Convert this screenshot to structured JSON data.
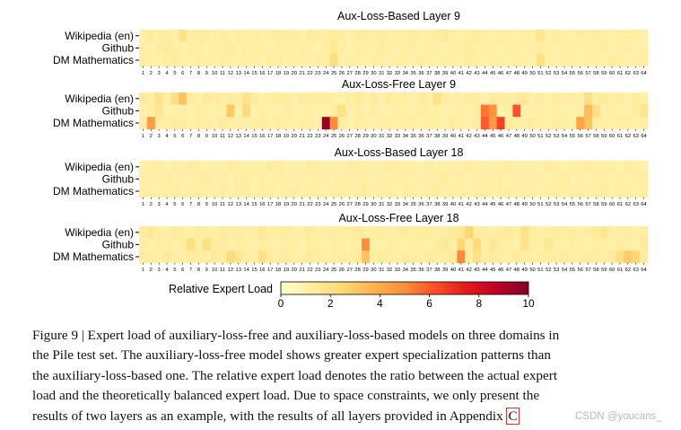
{
  "chart_data": {
    "type": "heatmap",
    "panels": [
      {
        "title": "Aux-Loss-Based Layer 9",
        "rows": [
          "Wikipedia (en)",
          "Github",
          "DM Mathematics"
        ],
        "values": [
          [
            1.0,
            1.3,
            1.1,
            1.2,
            1.0,
            1.9,
            1.1,
            1.3,
            1.2,
            1.0,
            1.2,
            1.0,
            1.3,
            1.1,
            1.2,
            1.0,
            1.1,
            1.3,
            1.1,
            1.2,
            1.0,
            1.4,
            1.1,
            1.2,
            1.3,
            1.1,
            1.0,
            1.3,
            1.2,
            1.1,
            1.2,
            1.0,
            1.2,
            1.1,
            1.3,
            1.0,
            1.1,
            1.2,
            1.5,
            1.1,
            1.0,
            1.2,
            1.3,
            1.1,
            1.0,
            1.2,
            1.1,
            1.0,
            1.2,
            1.1,
            1.7,
            1.0,
            1.2,
            1.1,
            1.0,
            1.2,
            1.1,
            1.3,
            1.1,
            1.0,
            1.2,
            1.1,
            1.2,
            1.0
          ],
          [
            1.1,
            1.0,
            1.2,
            1.4,
            1.1,
            1.0,
            1.2,
            1.1,
            1.0,
            1.2,
            1.1,
            1.3,
            1.0,
            1.1,
            1.2,
            1.1,
            1.0,
            1.2,
            1.1,
            1.0,
            1.2,
            1.1,
            1.0,
            1.2,
            1.5,
            1.1,
            1.0,
            1.2,
            1.1,
            1.0,
            1.3,
            1.1,
            1.0,
            1.2,
            1.1,
            1.0,
            1.2,
            1.1,
            1.0,
            1.2,
            1.1,
            1.4,
            1.0,
            1.1,
            1.2,
            1.0,
            1.1,
            1.2,
            1.0,
            1.1,
            1.2,
            1.1,
            1.0,
            1.2,
            1.1,
            1.0,
            1.2,
            1.1,
            1.3,
            1.0,
            1.1,
            1.2,
            1.0,
            1.1
          ],
          [
            1.2,
            1.1,
            1.0,
            1.2,
            1.3,
            1.1,
            1.0,
            1.2,
            1.1,
            1.0,
            1.2,
            1.1,
            1.0,
            1.2,
            1.1,
            1.0,
            1.2,
            1.1,
            1.0,
            1.2,
            1.1,
            1.0,
            1.2,
            1.1,
            2.2,
            1.0,
            1.2,
            1.1,
            1.0,
            1.2,
            1.1,
            1.0,
            1.2,
            1.1,
            1.0,
            1.2,
            1.1,
            1.0,
            1.2,
            1.1,
            1.0,
            1.3,
            1.1,
            1.0,
            1.2,
            1.1,
            1.0,
            1.2,
            1.1,
            1.0,
            2.0,
            1.1,
            1.0,
            1.2,
            1.1,
            1.0,
            1.2,
            1.1,
            1.0,
            1.2,
            1.1,
            1.0,
            1.2,
            1.1
          ]
        ]
      },
      {
        "title": "Aux-Loss-Free Layer 9",
        "rows": [
          "Wikipedia (en)",
          "Github",
          "DM Mathematics"
        ],
        "values": [
          [
            1.4,
            1.2,
            1.9,
            1.1,
            2.1,
            3.2,
            1.2,
            1.0,
            1.4,
            1.2,
            1.1,
            1.3,
            1.2,
            1.9,
            1.2,
            1.0,
            1.1,
            1.3,
            1.2,
            1.0,
            1.4,
            1.1,
            1.2,
            1.3,
            1.1,
            1.0,
            1.2,
            1.4,
            1.1,
            1.2,
            1.0,
            1.3,
            1.1,
            1.2,
            1.0,
            1.3,
            1.1,
            1.9,
            1.2,
            1.0,
            1.1,
            1.3,
            1.2,
            1.0,
            1.4,
            1.2,
            1.1,
            1.3,
            1.5,
            1.1,
            1.2,
            1.0,
            1.3,
            1.1,
            1.2,
            1.0,
            2.1,
            1.2,
            1.4,
            1.1,
            1.2,
            1.0,
            1.3,
            1.1
          ],
          [
            1.0,
            1.1,
            1.6,
            1.0,
            1.0,
            1.1,
            1.0,
            1.2,
            1.0,
            1.0,
            1.1,
            3.0,
            1.0,
            2.3,
            1.0,
            1.1,
            1.0,
            1.0,
            1.2,
            1.0,
            1.0,
            1.1,
            1.0,
            1.0,
            1.2,
            2.0,
            1.0,
            1.1,
            1.0,
            1.2,
            1.0,
            1.0,
            1.1,
            1.0,
            1.0,
            1.2,
            1.0,
            1.1,
            1.0,
            1.0,
            1.1,
            1.0,
            1.2,
            5.5,
            4.8,
            1.0,
            1.1,
            6.2,
            1.0,
            1.0,
            1.1,
            1.0,
            1.2,
            1.0,
            1.0,
            1.1,
            3.4,
            2.2,
            1.0,
            1.1,
            1.0,
            1.0,
            1.2,
            1.8
          ],
          [
            1.3,
            4.5,
            1.2,
            1.1,
            1.3,
            1.2,
            1.0,
            1.1,
            1.2,
            1.0,
            1.3,
            1.1,
            1.2,
            1.0,
            1.1,
            1.3,
            1.0,
            1.2,
            1.1,
            1.0,
            1.2,
            1.1,
            1.0,
            9.5,
            5.0,
            1.1,
            1.0,
            1.2,
            1.1,
            1.0,
            1.2,
            1.1,
            1.0,
            1.2,
            1.1,
            1.0,
            1.2,
            1.1,
            1.0,
            1.3,
            1.1,
            1.0,
            1.2,
            6.0,
            4.5,
            6.6,
            1.2,
            1.1,
            1.0,
            1.2,
            1.1,
            1.0,
            1.2,
            1.1,
            1.0,
            4.2,
            3.2,
            1.2,
            1.1,
            1.0,
            1.2,
            1.1,
            1.0,
            1.2
          ]
        ]
      },
      {
        "title": "Aux-Loss-Based Layer 18",
        "rows": [
          "Wikipedia (en)",
          "Github",
          "DM Mathematics"
        ],
        "values": [
          [
            1.0,
            1.1,
            1.2,
            1.0,
            1.1,
            1.0,
            1.2,
            1.1,
            1.0,
            1.1,
            1.0,
            1.2,
            1.1,
            1.0,
            1.1,
            1.0,
            1.2,
            1.1,
            1.0,
            1.1,
            1.0,
            1.2,
            1.1,
            1.0,
            1.1,
            1.0,
            1.2,
            1.1,
            1.0,
            1.1,
            1.0,
            1.2,
            1.1,
            1.0,
            1.1,
            1.0,
            1.2,
            1.1,
            1.0,
            1.1,
            1.0,
            1.2,
            1.1,
            1.0,
            1.1,
            1.0,
            1.2,
            1.1,
            1.0,
            1.1,
            1.0,
            1.2,
            1.1,
            1.0,
            1.1,
            1.0,
            1.2,
            1.1,
            1.0,
            1.1,
            1.0,
            1.2,
            1.1,
            1.0
          ],
          [
            1.1,
            1.0,
            1.1,
            1.2,
            1.0,
            1.1,
            1.0,
            1.1,
            1.2,
            1.0,
            1.1,
            1.0,
            1.1,
            1.2,
            1.0,
            1.1,
            1.0,
            1.1,
            1.2,
            1.0,
            1.1,
            1.0,
            1.1,
            1.2,
            1.0,
            1.1,
            1.0,
            1.1,
            1.2,
            1.0,
            1.1,
            1.0,
            1.1,
            1.2,
            1.0,
            1.1,
            1.0,
            1.1,
            1.2,
            1.0,
            1.1,
            1.0,
            1.1,
            1.2,
            1.0,
            1.1,
            1.0,
            1.1,
            1.2,
            1.0,
            1.1,
            1.0,
            1.1,
            1.2,
            1.0,
            1.1,
            1.0,
            1.1,
            1.2,
            1.0,
            1.1,
            1.0,
            1.1,
            1.2
          ],
          [
            1.2,
            1.1,
            1.0,
            1.1,
            1.2,
            1.0,
            1.1,
            1.2,
            1.0,
            1.1,
            1.2,
            1.0,
            1.1,
            1.2,
            1.0,
            1.1,
            1.2,
            1.0,
            1.1,
            1.2,
            1.0,
            1.1,
            1.2,
            1.0,
            1.1,
            1.2,
            1.0,
            1.1,
            1.2,
            1.0,
            1.1,
            1.2,
            1.0,
            1.1,
            1.2,
            1.0,
            1.1,
            1.2,
            1.0,
            1.1,
            1.2,
            1.0,
            1.1,
            1.2,
            1.0,
            1.1,
            1.2,
            1.0,
            1.1,
            1.2,
            1.0,
            1.1,
            1.2,
            1.0,
            1.1,
            1.2,
            1.0,
            1.1,
            1.2,
            1.0,
            1.1,
            1.2,
            1.0,
            1.1
          ]
        ]
      },
      {
        "title": "Aux-Loss-Free Layer 18",
        "rows": [
          "Wikipedia (en)",
          "Github",
          "DM Mathematics"
        ],
        "values": [
          [
            1.3,
            1.5,
            1.2,
            1.1,
            1.4,
            1.2,
            1.1,
            1.3,
            1.2,
            1.1,
            1.4,
            1.2,
            1.3,
            1.1,
            1.2,
            1.5,
            1.1,
            1.2,
            1.3,
            1.1,
            1.2,
            1.4,
            1.1,
            1.2,
            1.3,
            1.1,
            1.2,
            1.4,
            1.1,
            1.2,
            1.3,
            1.1,
            1.2,
            1.4,
            1.1,
            1.2,
            1.3,
            1.1,
            1.2,
            1.4,
            1.6,
            2.6,
            1.2,
            1.3,
            1.1,
            1.2,
            1.4,
            1.1,
            1.9,
            1.3,
            1.1,
            1.2,
            1.4,
            1.2,
            1.3,
            1.1,
            1.2,
            1.4,
            1.7,
            1.1,
            1.2,
            1.3,
            1.1,
            1.2
          ],
          [
            1.1,
            1.0,
            1.2,
            1.1,
            1.0,
            1.2,
            2.1,
            1.1,
            2.0,
            1.2,
            1.1,
            1.0,
            1.2,
            1.1,
            1.0,
            1.2,
            1.1,
            1.0,
            1.2,
            1.1,
            1.0,
            1.2,
            1.1,
            1.0,
            1.2,
            1.1,
            1.0,
            1.2,
            5.0,
            1.1,
            1.0,
            1.2,
            1.1,
            1.0,
            1.2,
            1.1,
            1.0,
            1.2,
            1.5,
            1.1,
            2.6,
            1.2,
            2.4,
            1.1,
            1.5,
            1.2,
            1.1,
            1.0,
            1.9,
            1.1,
            1.0,
            1.6,
            1.1,
            1.0,
            1.2,
            1.1,
            1.0,
            1.2,
            1.1,
            1.0,
            1.2,
            1.1,
            1.0,
            1.4
          ],
          [
            1.3,
            1.2,
            1.1,
            1.4,
            1.2,
            1.1,
            1.3,
            1.2,
            1.1,
            1.4,
            1.2,
            2.3,
            1.6,
            1.2,
            1.1,
            2.0,
            1.2,
            1.1,
            1.3,
            1.2,
            1.1,
            1.4,
            1.2,
            1.1,
            1.3,
            1.2,
            1.1,
            1.4,
            3.2,
            1.1,
            1.3,
            1.2,
            1.1,
            1.4,
            1.2,
            1.1,
            1.3,
            1.2,
            1.1,
            1.4,
            5.1,
            1.2,
            2.0,
            1.1,
            1.3,
            1.2,
            1.1,
            1.4,
            1.2,
            1.1,
            1.3,
            1.2,
            1.1,
            1.4,
            1.2,
            1.1,
            1.3,
            1.2,
            1.1,
            1.4,
            2.1,
            2.9,
            2.6,
            1.2
          ]
        ]
      }
    ],
    "experts": [
      "1",
      "2",
      "3",
      "4",
      "5",
      "6",
      "7",
      "8",
      "9",
      "10",
      "11",
      "12",
      "13",
      "14",
      "15",
      "16",
      "17",
      "18",
      "19",
      "20",
      "21",
      "22",
      "23",
      "24",
      "25",
      "26",
      "27",
      "28",
      "29",
      "30",
      "31",
      "32",
      "33",
      "34",
      "35",
      "36",
      "37",
      "38",
      "39",
      "40",
      "41",
      "42",
      "43",
      "44",
      "45",
      "46",
      "47",
      "48",
      "49",
      "50",
      "51",
      "52",
      "53",
      "54",
      "55",
      "56",
      "57",
      "58",
      "59",
      "60",
      "61",
      "62",
      "63",
      "64"
    ],
    "colorbar": {
      "label": "Relative Expert Load",
      "range": [
        0,
        10
      ],
      "ticks": [
        "0",
        "2",
        "4",
        "6",
        "8",
        "10"
      ],
      "colormap": [
        "#ffffcc",
        "#ffeda0",
        "#fed976",
        "#feb24c",
        "#fd8d3c",
        "#fc4e2a",
        "#e31a1c",
        "#bd0026",
        "#800026"
      ]
    }
  },
  "caption": {
    "lines": [
      "Figure 9 | Expert load of auxiliary-loss-free and auxiliary-loss-based models on three domains in",
      "the Pile test set. The auxiliary-loss-free model shows greater expert specialization patterns than",
      "the auxiliary-loss-based one. The relative expert load denotes the ratio between the actual expert",
      "load and the theoretically balanced expert load. Due to space constraints, we only present the"
    ],
    "last_line": "results of two layers as an example, with the results of all layers provided in Appendix ",
    "appendix_ref": "C"
  },
  "watermark": "CSDN @youcans_"
}
